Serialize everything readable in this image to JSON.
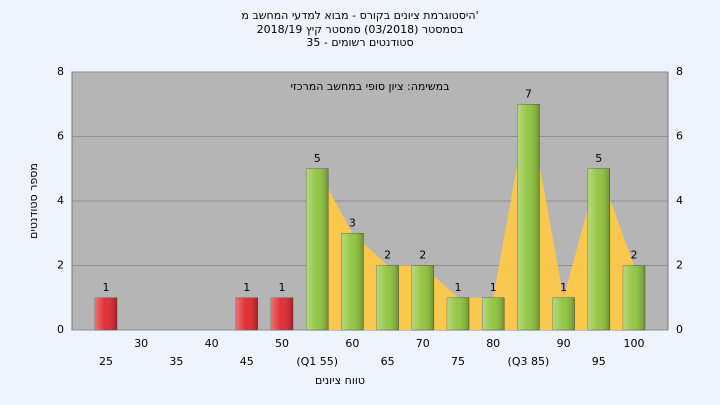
{
  "chart_data": {
    "type": "bar",
    "title": "היסטוגרמת ציונים בקורס - מבוא למדעי המחשב מ'",
    "subtitle": "בסמסטר (03/2018) סמסטר קיץ 2018/19",
    "subtitle2": "סטודנטים רשומים - 35",
    "annotation": "במשימה: ציון סופי במחשב המרכזי",
    "x_label": "טווח ציונים",
    "y_label": "מספר סטודנטים",
    "categories": [
      "25",
      "30",
      "35",
      "40",
      "45",
      "50",
      "(Q1 55)",
      "60",
      "65",
      "70",
      "75",
      "80",
      "(Q3 85)",
      "90",
      "95",
      "100"
    ],
    "values": [
      1,
      0,
      0,
      0,
      1,
      1,
      5,
      3,
      2,
      2,
      1,
      1,
      7,
      1,
      5,
      2
    ],
    "colors": [
      "#e0262a",
      "#e0262a",
      "#e0262a",
      "#e0262a",
      "#e0262a",
      "#e0262a",
      "#8fc43c",
      "#8fc43c",
      "#8fc43c",
      "#8fc43c",
      "#8fc43c",
      "#8fc43c",
      "#8fc43c",
      "#8fc43c",
      "#8fc43c",
      "#8fc43c"
    ],
    "area_color": "#ffc94a",
    "ylim": [
      0,
      8
    ],
    "yticks": [
      0,
      2,
      4,
      6,
      8
    ],
    "grid": true
  }
}
